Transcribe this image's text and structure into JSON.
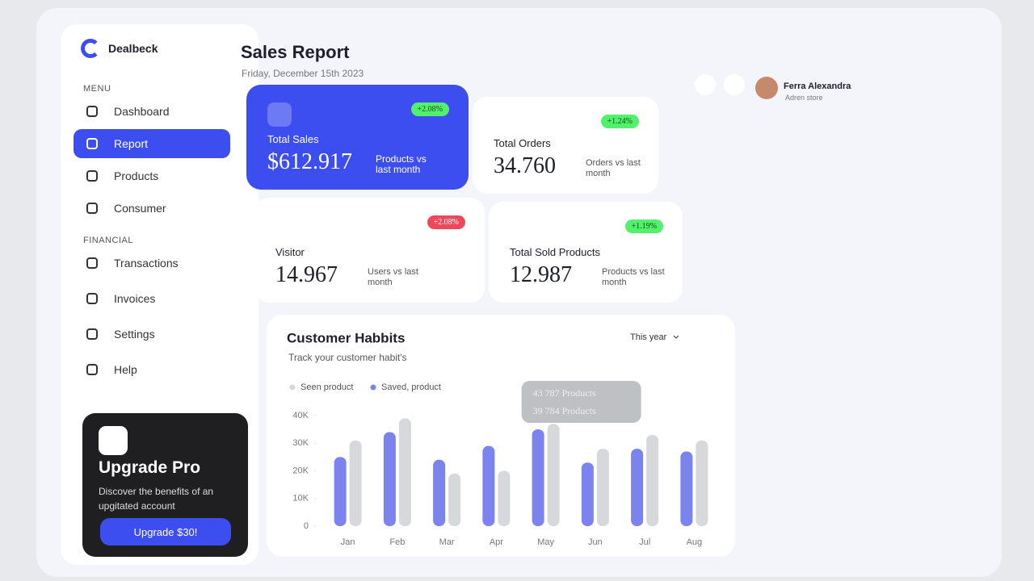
{
  "sidebar": {
    "brand": "Dealbeck",
    "menu_heading": "MENU",
    "menu": [
      "Dashboard",
      "Report",
      "Products",
      "Consumer"
    ],
    "financial_heading": "FINANCIAL",
    "financial": [
      "Transactions",
      "Invoices",
      "Settings",
      "Help"
    ],
    "promo": {
      "title": "Upgrade Pro",
      "text": "Discover the benefits of an upgitated account",
      "button": "Upgrade $30!"
    }
  },
  "header": {
    "title": "Sales Report",
    "date": "Friday, December 15th 2023",
    "user": {
      "name": "Ferra Alexandra",
      "store": "Adren store"
    }
  },
  "cards": [
    {
      "label": "Total Sales",
      "value": "$612.917",
      "badge": "+2.08%",
      "note": "Products vs last month"
    },
    {
      "label": "Total Orders",
      "value": "34.760",
      "badge": "+1.24%",
      "note": "Orders vs last month"
    },
    {
      "label": "Visitor",
      "value": "14.967",
      "badge": "+2.08%",
      "note": "Users vs last month"
    },
    {
      "label": "Total Sold Products",
      "value": "12.987",
      "badge": "+1.19%",
      "note": "Products vs last month"
    }
  ],
  "chart_data": {
    "type": "bar",
    "title": "Customer Habbits",
    "subtitle": "Track your customer habit's",
    "period": "This year",
    "categories": [
      "Jan",
      "Feb",
      "Mar",
      "Apr",
      "May",
      "Jun",
      "Jul",
      "Aug"
    ],
    "series": [
      {
        "name": "Seen product",
        "color": "#d7d8dc",
        "values": [
          31000,
          39000,
          19000,
          20000,
          37000,
          28000,
          33000,
          31000
        ]
      },
      {
        "name": "Saved, product",
        "color": "#7b83ee",
        "values": [
          25000,
          34000,
          24000,
          29000,
          35000,
          23000,
          28000,
          27000
        ]
      }
    ],
    "ylim": [
      0,
      40000
    ],
    "yticks": [
      {
        "value": 0,
        "label": "0"
      },
      {
        "value": 10000,
        "label": "10K"
      },
      {
        "value": 20000,
        "label": "20K"
      },
      {
        "value": 30000,
        "label": "30K"
      },
      {
        "value": 40000,
        "label": "40K"
      }
    ],
    "annotations": [
      "43 787 Products",
      "39 784 Products"
    ]
  }
}
